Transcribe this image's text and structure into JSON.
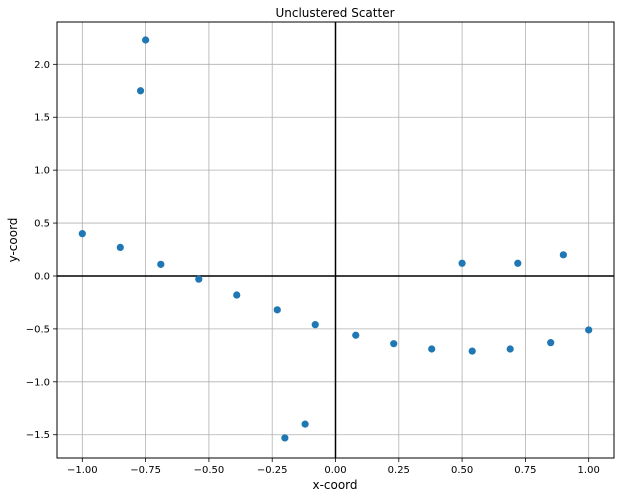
{
  "chart_data": {
    "type": "scatter",
    "title": "Unclustered Scatter",
    "xlabel": "x-coord",
    "ylabel": "y-coord",
    "xlim": [
      -1.1,
      1.1
    ],
    "ylim": [
      -1.72,
      2.4
    ],
    "grid": true,
    "zero_lines": true,
    "point_color": "#1f77b4",
    "x_ticks": [
      -1.0,
      -0.75,
      -0.5,
      -0.25,
      0.0,
      0.25,
      0.5,
      0.75,
      1.0
    ],
    "x_tick_labels": [
      "−1.00",
      "−0.75",
      "−0.50",
      "−0.25",
      "0.00",
      "0.25",
      "0.50",
      "0.75",
      "1.00"
    ],
    "y_ticks": [
      -1.5,
      -1.0,
      -0.5,
      0.0,
      0.5,
      1.0,
      1.5,
      2.0
    ],
    "y_tick_labels": [
      "−1.5",
      "−1.0",
      "−0.5",
      "0.0",
      "0.5",
      "1.0",
      "1.5",
      "2.0"
    ],
    "points": [
      {
        "x": -1.0,
        "y": 0.4
      },
      {
        "x": -0.85,
        "y": 0.27
      },
      {
        "x": -0.77,
        "y": 1.75
      },
      {
        "x": -0.75,
        "y": 2.23
      },
      {
        "x": -0.69,
        "y": 0.11
      },
      {
        "x": -0.54,
        "y": -0.03
      },
      {
        "x": -0.39,
        "y": -0.18
      },
      {
        "x": -0.23,
        "y": -0.32
      },
      {
        "x": -0.2,
        "y": -1.53
      },
      {
        "x": -0.12,
        "y": -1.4
      },
      {
        "x": -0.08,
        "y": -0.46
      },
      {
        "x": 0.08,
        "y": -0.56
      },
      {
        "x": 0.23,
        "y": -0.64
      },
      {
        "x": 0.38,
        "y": -0.69
      },
      {
        "x": 0.5,
        "y": 0.12
      },
      {
        "x": 0.54,
        "y": -0.71
      },
      {
        "x": 0.69,
        "y": -0.69
      },
      {
        "x": 0.72,
        "y": 0.12
      },
      {
        "x": 0.85,
        "y": -0.63
      },
      {
        "x": 0.9,
        "y": 0.2
      },
      {
        "x": 1.0,
        "y": -0.51
      }
    ]
  }
}
